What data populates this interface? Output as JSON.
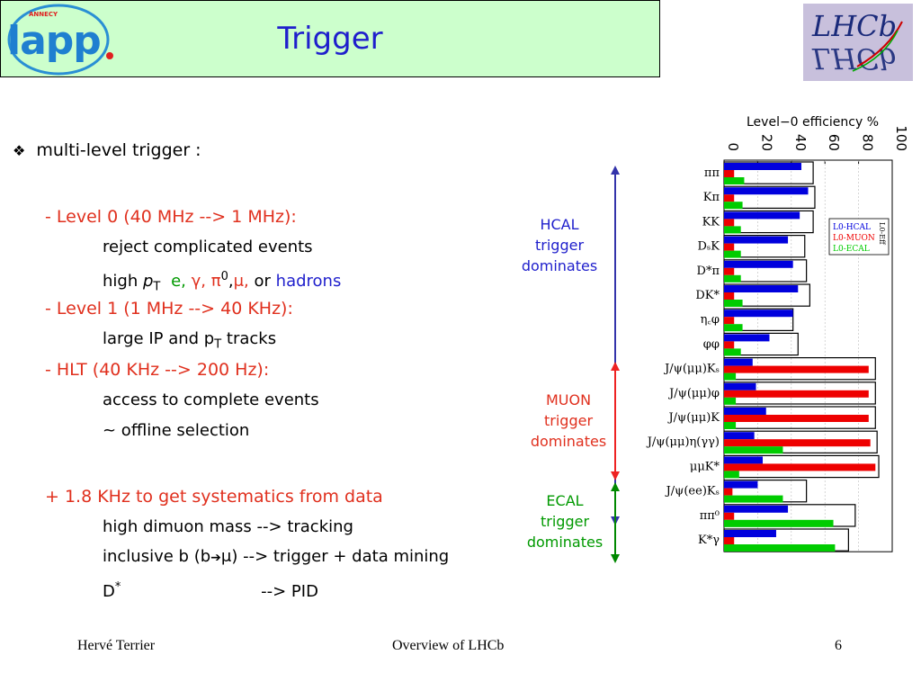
{
  "slide": {
    "title": "Trigger",
    "logo_left": {
      "top": "ANNECY",
      "main": "lapp"
    },
    "logo_right": "LHCb",
    "bullet": "multi-level trigger :",
    "level0": {
      "head": "- Level 0 (40 MHz --> 1 MHz):",
      "l1": "reject complicated events",
      "l2_pre": "high ",
      "l2_p": "p",
      "l2_T": "T",
      "l2_e": "e,",
      "l2_gamma": "γ,",
      "l2_pi": "π",
      "l2_pi_sup": "0",
      "l2_comma": ",",
      "l2_mu": "μ,",
      "l2_or": "or",
      "l2_hadrons": "hadrons"
    },
    "level1": {
      "head": "- Level 1 (1 MHz --> 40 KHz):",
      "l1_a": "large IP and p",
      "l1_T": "T",
      "l1_b": " tracks"
    },
    "hlt": {
      "head": "- HLT (40 KHz --> 200 Hz):",
      "l1": "access to complete events",
      "l2": "~ offline selection"
    },
    "extra": {
      "head": "+ 1.8 KHz to get systematics from data",
      "l1": "high dimuon mass --> tracking",
      "l2_a": "inclusive b (b",
      "l2_arrow": "➔",
      "l2_mu": "μ",
      "l2_b": ") --> trigger + data mining",
      "l3_D": "D",
      "l3_sup": "*",
      "l3_b": "--> PID"
    },
    "annotations": {
      "hcal": [
        "HCAL",
        "trigger",
        "dominates"
      ],
      "muon": [
        "MUON",
        "trigger",
        "dominates"
      ],
      "ecal": [
        "ECAL",
        "trigger",
        "dominates"
      ]
    },
    "footer": {
      "left": "Hervé Terrier",
      "center": "Overview of LHCb",
      "right": "6"
    }
  },
  "colors": {
    "title_bg": "#ccffcc",
    "title_text": "#1f1fcc",
    "red_text": "#e0301e",
    "hcal": "#0000dd",
    "muon": "#ee0000",
    "ecal": "#00cc00"
  },
  "chart_data": {
    "type": "bar",
    "orientation": "horizontal",
    "title": "Level−0 efficiency %",
    "xlim": [
      0,
      100
    ],
    "ticks": [
      0,
      20,
      40,
      60,
      80,
      100
    ],
    "tick_labels": [
      "0",
      "20",
      "40",
      "60",
      "80",
      "100"
    ],
    "categories": [
      "ππ",
      "Kπ",
      "KK",
      "DₛK",
      "D*π",
      "DK*",
      "η꜀φ",
      "φφ",
      "J/ψ(μμ)Kₛ",
      "J/ψ(μμ)φ",
      "J/ψ(μμ)K",
      "J/ψ(μμ)η(γγ)",
      "μμK*",
      "J/ψ(ee)Kₛ",
      "ππ⁰",
      "K*γ"
    ],
    "series": [
      {
        "name": "L0-HCAL",
        "color": "#0000dd",
        "values": [
          46,
          50,
          45,
          38,
          41,
          44,
          41,
          27,
          17,
          19,
          25,
          18,
          23,
          20,
          38,
          31
        ]
      },
      {
        "name": "L0-MUON",
        "color": "#ee0000",
        "values": [
          6,
          6,
          6,
          6,
          6,
          6,
          6,
          6,
          86,
          86,
          86,
          87,
          90,
          5,
          6,
          6
        ]
      },
      {
        "name": "L0-ECAL",
        "color": "#00cc00",
        "values": [
          12,
          11,
          10,
          10,
          10,
          11,
          11,
          10,
          7,
          7,
          7,
          35,
          9,
          35,
          65,
          66
        ]
      },
      {
        "name": "L0-Eff",
        "color": "#000000",
        "values": [
          53,
          54,
          53,
          48,
          49,
          51,
          41,
          44,
          90,
          90,
          90,
          91,
          92,
          49,
          78,
          74
        ]
      }
    ],
    "legend": [
      "L0-HCAL",
      "L0-MUON",
      "L0-ECAL",
      "L0-Eff"
    ],
    "legend_position": "right"
  }
}
